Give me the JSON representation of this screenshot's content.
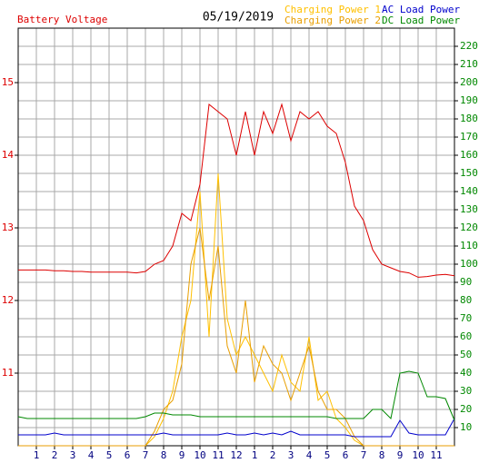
{
  "chart_data": {
    "type": "line",
    "title": "05/19/2019",
    "ylabel": "Battery Voltage",
    "x": [
      0,
      0.5,
      1,
      1.5,
      2,
      2.5,
      3,
      3.5,
      4,
      4.5,
      5,
      5.5,
      6,
      6.5,
      7,
      7.5,
      8,
      8.5,
      9,
      9.5,
      10,
      10.5,
      11,
      11.5,
      12,
      12.5,
      13,
      13.5,
      14,
      14.5,
      15,
      15.5,
      16,
      16.5,
      17,
      17.5,
      18,
      18.5,
      19,
      19.5,
      20,
      20.5,
      21,
      21.5,
      22,
      22.5,
      23,
      23.5,
      24
    ],
    "xlim": [
      0,
      24
    ],
    "xticks": [
      1,
      2,
      3,
      4,
      5,
      6,
      7,
      8,
      9,
      10,
      11,
      12,
      {
        "value": 13,
        "label": "1"
      },
      {
        "value": 14,
        "label": "2"
      },
      {
        "value": 15,
        "label": "3"
      },
      {
        "value": 16,
        "label": "4"
      },
      {
        "value": 17,
        "label": "5"
      },
      {
        "value": 18,
        "label": "6"
      },
      {
        "value": 19,
        "label": "7"
      },
      {
        "value": 20,
        "label": "8"
      },
      {
        "value": 21,
        "label": "9"
      },
      {
        "value": 22,
        "label": "10"
      },
      {
        "value": 23,
        "label": "11"
      }
    ],
    "ylim": [
      10,
      15.75
    ],
    "yticks": [
      11,
      12,
      13,
      14,
      15
    ],
    "y2lim": [
      0,
      230
    ],
    "y2ticks": [
      10,
      20,
      30,
      40,
      50,
      60,
      70,
      80,
      90,
      100,
      110,
      120,
      130,
      140,
      150,
      160,
      170,
      180,
      190,
      200,
      210,
      220
    ],
    "grid": true,
    "legend": "top-right",
    "series": [
      {
        "name": "Battery Voltage",
        "color": "#dd0000",
        "axis": "y",
        "values": [
          12.42,
          12.42,
          12.42,
          12.42,
          12.41,
          12.41,
          12.4,
          12.4,
          12.39,
          12.39,
          12.39,
          12.39,
          12.39,
          12.38,
          12.4,
          12.5,
          12.55,
          12.75,
          13.2,
          13.1,
          13.6,
          14.7,
          14.6,
          14.5,
          14.0,
          14.6,
          14.0,
          14.6,
          14.3,
          14.7,
          14.2,
          14.6,
          14.5,
          14.6,
          14.4,
          14.3,
          13.9,
          13.3,
          13.1,
          12.7,
          12.5,
          12.45,
          12.4,
          12.38,
          12.32,
          12.33,
          12.35,
          12.36,
          12.34
        ]
      },
      {
        "name": "Charging Power 1",
        "color": "#ffc000",
        "axis": "y2",
        "values": [
          0,
          0,
          0,
          0,
          0,
          0,
          0,
          0,
          0,
          0,
          0,
          0,
          0,
          0,
          0,
          5,
          15,
          30,
          60,
          80,
          140,
          60,
          150,
          70,
          50,
          60,
          50,
          40,
          30,
          50,
          35,
          30,
          60,
          25,
          30,
          15,
          10,
          3,
          0,
          0,
          0,
          0,
          0,
          0,
          0,
          0,
          0,
          0,
          0
        ]
      },
      {
        "name": "Charging Power 2",
        "color": "#e89e00",
        "axis": "y2",
        "values": [
          0,
          0,
          0,
          0,
          0,
          0,
          0,
          0,
          0,
          0,
          0,
          0,
          0,
          0,
          0,
          8,
          20,
          25,
          45,
          100,
          120,
          80,
          110,
          55,
          40,
          80,
          35,
          55,
          45,
          40,
          25,
          40,
          55,
          30,
          20,
          20,
          15,
          5,
          0,
          0,
          0,
          0,
          0,
          0,
          0,
          0,
          0,
          0,
          0
        ]
      },
      {
        "name": "AC Load Power",
        "color": "#0000cc",
        "axis": "y2",
        "values": [
          6,
          6,
          6,
          6,
          7,
          6,
          6,
          6,
          6,
          6,
          6,
          6,
          6,
          6,
          6,
          6,
          7,
          6,
          6,
          6,
          6,
          6,
          6,
          7,
          6,
          6,
          7,
          6,
          7,
          6,
          8,
          6,
          6,
          6,
          6,
          6,
          6,
          5,
          5,
          5,
          5,
          5,
          14,
          7,
          6,
          6,
          6,
          6,
          15
        ]
      },
      {
        "name": "DC Load Power",
        "color": "#008800",
        "axis": "y2",
        "values": [
          16,
          15,
          15,
          15,
          15,
          15,
          15,
          15,
          15,
          15,
          15,
          15,
          15,
          15,
          16,
          18,
          18,
          17,
          17,
          17,
          16,
          16,
          16,
          16,
          16,
          16,
          16,
          16,
          16,
          16,
          16,
          16,
          16,
          16,
          16,
          15,
          15,
          15,
          15,
          20,
          20,
          15,
          40,
          41,
          40,
          27,
          27,
          26,
          14
        ]
      }
    ]
  }
}
